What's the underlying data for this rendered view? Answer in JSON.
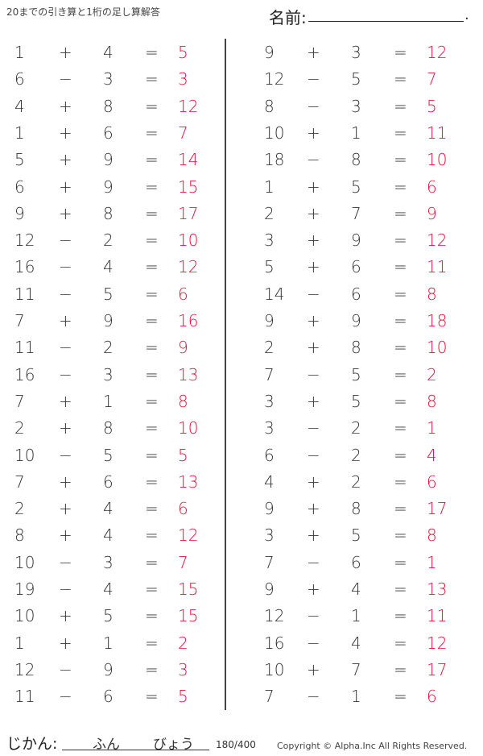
{
  "header": {
    "title": "20までの引き算と1桁の足し算解答",
    "name_label": "名前:",
    "name_end": "."
  },
  "colors": {
    "answer": "#e8103a",
    "text": "#333333"
  },
  "left": [
    [
      "1",
      "+",
      "4",
      "=",
      "5"
    ],
    [
      "6",
      "−",
      "3",
      "=",
      "3"
    ],
    [
      "4",
      "+",
      "8",
      "=",
      "12"
    ],
    [
      "1",
      "+",
      "6",
      "=",
      "7"
    ],
    [
      "5",
      "+",
      "9",
      "=",
      "14"
    ],
    [
      "6",
      "+",
      "9",
      "=",
      "15"
    ],
    [
      "9",
      "+",
      "8",
      "=",
      "17"
    ],
    [
      "12",
      "−",
      "2",
      "=",
      "10"
    ],
    [
      "16",
      "−",
      "4",
      "=",
      "12"
    ],
    [
      "11",
      "−",
      "5",
      "=",
      "6"
    ],
    [
      "7",
      "+",
      "9",
      "=",
      "16"
    ],
    [
      "11",
      "−",
      "2",
      "=",
      "9"
    ],
    [
      "16",
      "−",
      "3",
      "=",
      "13"
    ],
    [
      "7",
      "+",
      "1",
      "=",
      "8"
    ],
    [
      "2",
      "+",
      "8",
      "=",
      "10"
    ],
    [
      "10",
      "−",
      "5",
      "=",
      "5"
    ],
    [
      "7",
      "+",
      "6",
      "=",
      "13"
    ],
    [
      "2",
      "+",
      "4",
      "=",
      "6"
    ],
    [
      "8",
      "+",
      "4",
      "=",
      "12"
    ],
    [
      "10",
      "−",
      "3",
      "=",
      "7"
    ],
    [
      "19",
      "−",
      "4",
      "=",
      "15"
    ],
    [
      "10",
      "+",
      "5",
      "=",
      "15"
    ],
    [
      "1",
      "+",
      "1",
      "=",
      "2"
    ],
    [
      "12",
      "−",
      "9",
      "=",
      "3"
    ],
    [
      "11",
      "−",
      "6",
      "=",
      "5"
    ]
  ],
  "right": [
    [
      "9",
      "+",
      "3",
      "=",
      "12"
    ],
    [
      "12",
      "−",
      "5",
      "=",
      "7"
    ],
    [
      "8",
      "−",
      "3",
      "=",
      "5"
    ],
    [
      "10",
      "+",
      "1",
      "=",
      "11"
    ],
    [
      "18",
      "−",
      "8",
      "=",
      "10"
    ],
    [
      "1",
      "+",
      "5",
      "=",
      "6"
    ],
    [
      "2",
      "+",
      "7",
      "=",
      "9"
    ],
    [
      "3",
      "+",
      "9",
      "=",
      "12"
    ],
    [
      "5",
      "+",
      "6",
      "=",
      "11"
    ],
    [
      "14",
      "−",
      "6",
      "=",
      "8"
    ],
    [
      "9",
      "+",
      "9",
      "=",
      "18"
    ],
    [
      "2",
      "+",
      "8",
      "=",
      "10"
    ],
    [
      "7",
      "−",
      "5",
      "=",
      "2"
    ],
    [
      "3",
      "+",
      "5",
      "=",
      "8"
    ],
    [
      "3",
      "−",
      "2",
      "=",
      "1"
    ],
    [
      "6",
      "−",
      "2",
      "=",
      "4"
    ],
    [
      "4",
      "+",
      "2",
      "=",
      "6"
    ],
    [
      "9",
      "+",
      "8",
      "=",
      "17"
    ],
    [
      "3",
      "+",
      "5",
      "=",
      "8"
    ],
    [
      "7",
      "−",
      "6",
      "=",
      "1"
    ],
    [
      "9",
      "+",
      "4",
      "=",
      "13"
    ],
    [
      "12",
      "−",
      "1",
      "=",
      "11"
    ],
    [
      "16",
      "−",
      "4",
      "=",
      "12"
    ],
    [
      "10",
      "+",
      "7",
      "=",
      "17"
    ],
    [
      "7",
      "−",
      "1",
      "=",
      "6"
    ]
  ],
  "footer": {
    "time_label": "じかん:",
    "minutes": "ふん",
    "seconds": "びょう",
    "page": "180/400",
    "copyright": "Copyright ©  Alpha.Inc All Rights Reserved."
  }
}
